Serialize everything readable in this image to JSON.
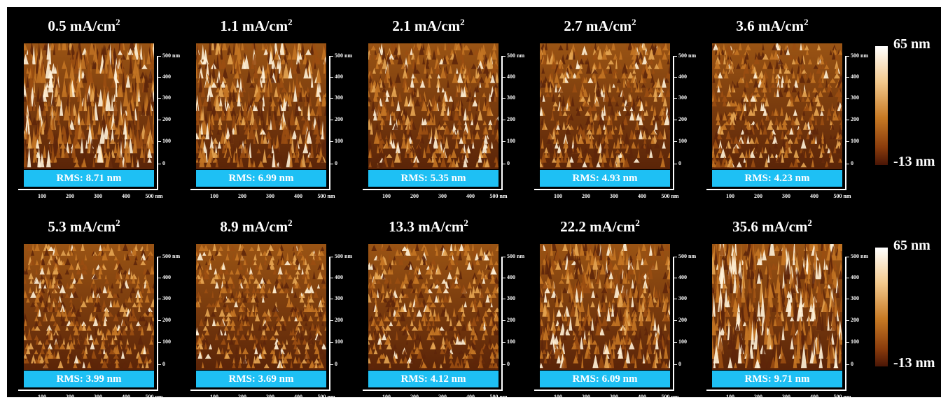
{
  "panels": [
    {
      "title": "0.5  mA/cm",
      "rms": "RMS: 8.71 nm",
      "roughness": 8.71
    },
    {
      "title": "1.1  mA/cm",
      "rms": "RMS: 6.99 nm",
      "roughness": 6.99
    },
    {
      "title": "2.1  mA/cm",
      "rms": "RMS: 5.35 nm",
      "roughness": 5.35
    },
    {
      "title": "2.7  mA/cm",
      "rms": "RMS: 4.93 nm",
      "roughness": 4.93
    },
    {
      "title": "3.6  mA/cm",
      "rms": "RMS: 4.23 nm",
      "roughness": 4.23
    },
    {
      "title": "5.3  mA/cm",
      "rms": "RMS: 3.99 nm",
      "roughness": 3.99
    },
    {
      "title": "8.9  mA/cm",
      "rms": "RMS: 3.69 nm",
      "roughness": 3.69
    },
    {
      "title": "13.3  mA/cm",
      "rms": "RMS: 4.12 nm",
      "roughness": 4.12
    },
    {
      "title": "22.2  mA/cm",
      "rms": "RMS: 6.09 nm",
      "roughness": 6.09
    },
    {
      "title": "35.6  mA/cm",
      "rms": "RMS: 9.71 nm",
      "roughness": 9.71
    }
  ],
  "unit_exponent": "2",
  "y_axis_labels": [
    "500 nm",
    "400",
    "300",
    "200",
    "100",
    "0"
  ],
  "x_axis_labels": [
    "100",
    "200",
    "300",
    "400",
    "500 nm"
  ],
  "scale_bar": {
    "max": "65 nm",
    "min": "-13 nm"
  },
  "colors": {
    "background": "#000000",
    "rms_box": "#1ec0f4",
    "surface_dark": "#4a1606",
    "surface_mid": "#c77a24",
    "surface_light": "#ffffff"
  }
}
